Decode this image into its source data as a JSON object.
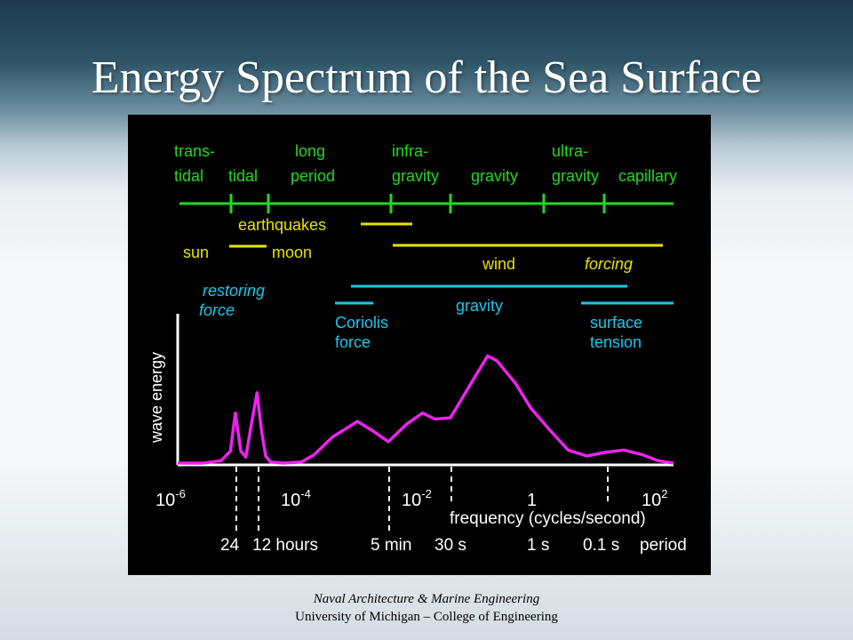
{
  "slide_title": "Energy Spectrum of the Sea Surface",
  "footer": {
    "line1": "Naval Architecture & Marine Engineering",
    "line2": "University of Michigan – College of Engineering"
  },
  "colors": {
    "green": "#22d822",
    "yellow": "#e8e200",
    "cyan": "#19c8ee",
    "magenta": "#ee22ee",
    "white": "#ffffff",
    "background": "#000000"
  },
  "bands": {
    "trans_tidal": [
      "trans-",
      "tidal"
    ],
    "tidal": "tidal",
    "long_period": [
      "long",
      "period"
    ],
    "infra_gravity": [
      "infra-",
      "gravity"
    ],
    "gravity": "gravity",
    "ultra_gravity": [
      "ultra-",
      "gravity"
    ],
    "capillary": "capillary"
  },
  "forcing": {
    "earthquakes": "earthquakes",
    "sun": "sun",
    "moon": "moon",
    "wind": "wind",
    "forcing": "forcing"
  },
  "restoring": {
    "label": [
      "restoring",
      "force"
    ],
    "coriolis": [
      "Coriolis",
      "force"
    ],
    "gravity": "gravity",
    "surface_tension": [
      "surface",
      "tension"
    ]
  },
  "axis": {
    "ylabel": "wave energy",
    "xlabel": "frequency (cycles/second)",
    "ticks": [
      {
        "base": "10",
        "exp": "-6"
      },
      {
        "base": "10",
        "exp": "-4"
      },
      {
        "base": "10",
        "exp": "-2"
      },
      {
        "base": "1",
        "exp": ""
      },
      {
        "base": "10",
        "exp": "2"
      }
    ],
    "period_labels": [
      "24",
      "12 hours",
      "5 min",
      "30 s",
      "1 s",
      "0.1 s",
      "period"
    ]
  },
  "chart_data": {
    "type": "line",
    "xlabel": "frequency (cycles/second)",
    "ylabel": "wave energy",
    "x_scale": "log",
    "x_exponents": [
      -6.0,
      -5.6,
      -5.3,
      -5.15,
      -5.07,
      -4.98,
      -4.9,
      -4.82,
      -4.72,
      -4.65,
      -4.58,
      -4.5,
      -4.3,
      -4.0,
      -3.8,
      -3.5,
      -3.1,
      -2.85,
      -2.6,
      -2.3,
      -2.05,
      -1.85,
      -1.6,
      -1.3,
      -1.0,
      -0.85,
      -0.55,
      -0.3,
      0.0,
      0.3,
      0.6,
      0.9,
      1.2,
      1.5,
      1.75,
      2.0
    ],
    "energy_relative": [
      0.0,
      0.0,
      0.02,
      0.1,
      0.42,
      0.1,
      0.05,
      0.3,
      0.59,
      0.28,
      0.06,
      0.01,
      0.0,
      0.01,
      0.07,
      0.22,
      0.35,
      0.27,
      0.18,
      0.33,
      0.42,
      0.37,
      0.38,
      0.64,
      0.9,
      0.86,
      0.67,
      0.46,
      0.28,
      0.11,
      0.06,
      0.09,
      0.11,
      0.07,
      0.02,
      0.0
    ]
  }
}
